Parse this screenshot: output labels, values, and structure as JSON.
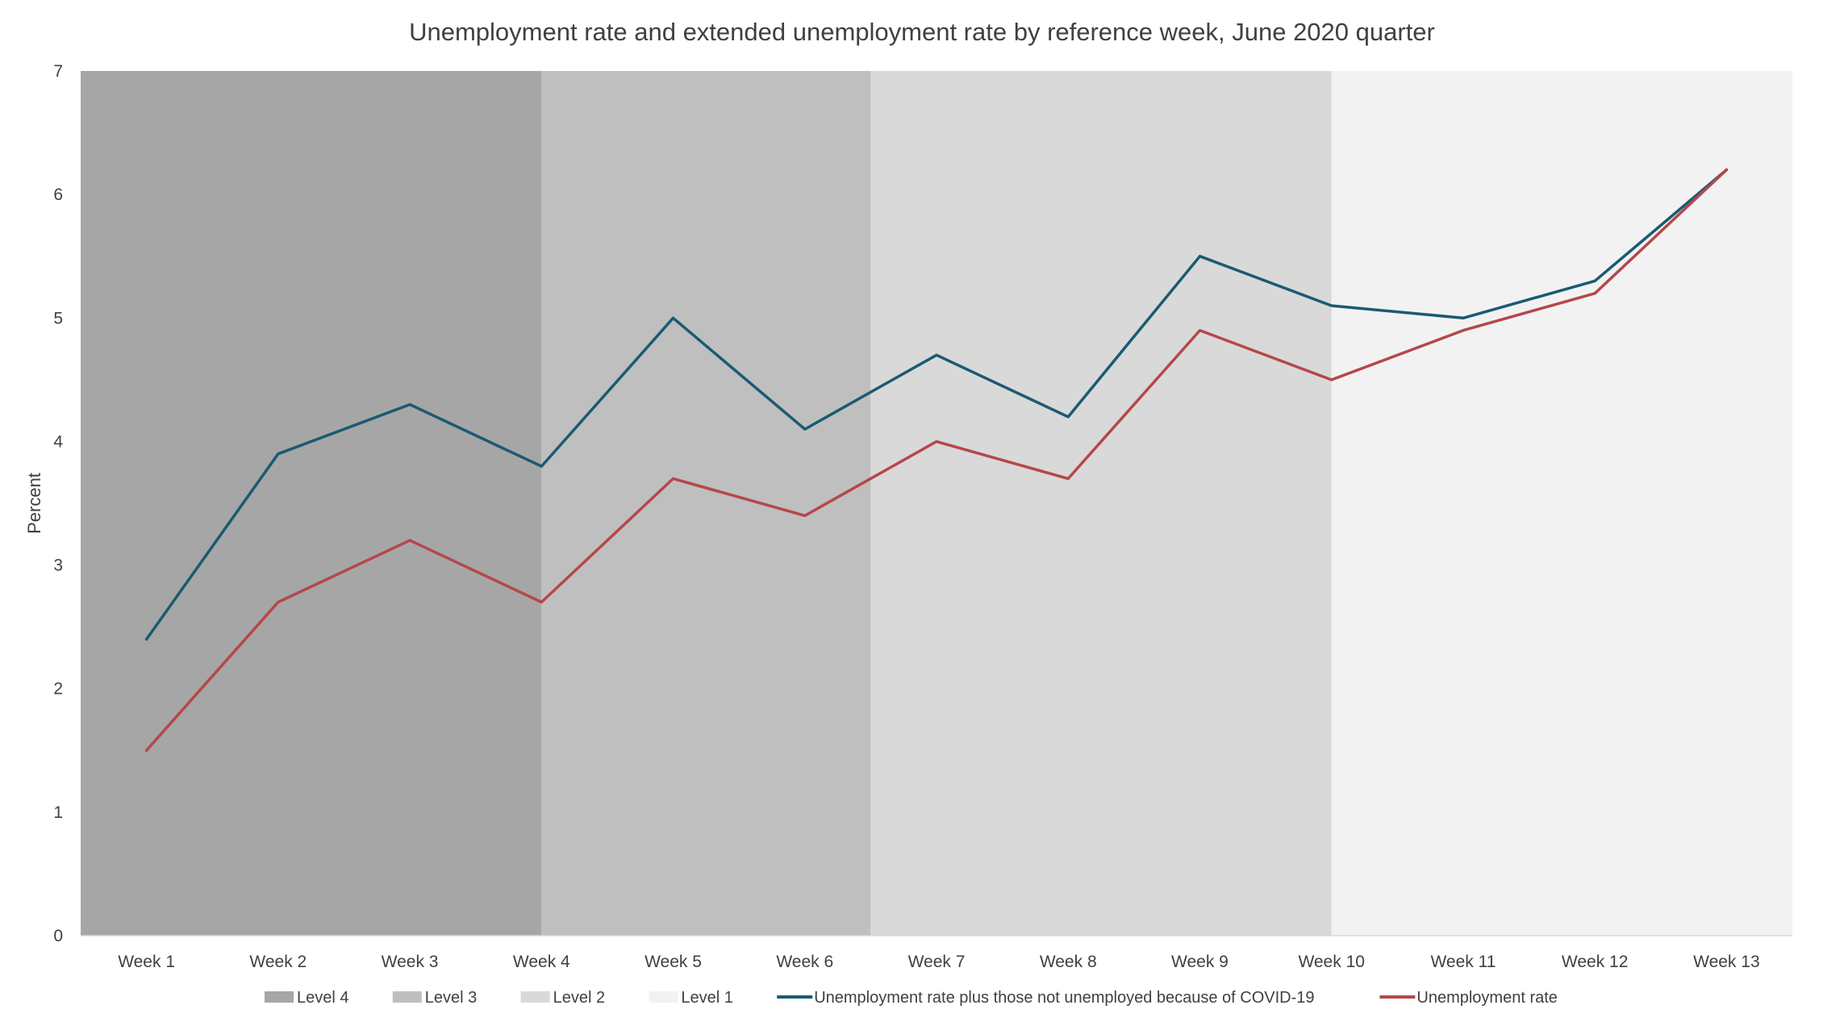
{
  "chart_data": {
    "type": "line",
    "title": "Unemployment rate and extended unemployment rate by reference week, June 2020 quarter",
    "xlabel": "",
    "ylabel": "Percent",
    "ylim": [
      0,
      7
    ],
    "yticks": [
      0,
      1,
      2,
      3,
      4,
      5,
      6,
      7
    ],
    "categories": [
      "Week 1",
      "Week 2",
      "Week 3",
      "Week 4",
      "Week 5",
      "Week 6",
      "Week 7",
      "Week 8",
      "Week 9",
      "Week 10",
      "Week 11",
      "Week 12",
      "Week 13"
    ],
    "series": [
      {
        "name": "Unemployment rate plus those not unemployed because of COVID-19",
        "color": "#1b5a73",
        "values": [
          2.4,
          3.9,
          4.3,
          3.8,
          5.0,
          4.1,
          4.7,
          4.2,
          5.5,
          5.1,
          5.0,
          5.3,
          6.2
        ]
      },
      {
        "name": "Unemployment rate",
        "color": "#b5474b",
        "values": [
          1.5,
          2.7,
          3.2,
          2.7,
          3.7,
          3.4,
          4.0,
          3.7,
          4.9,
          4.5,
          4.9,
          5.2,
          6.2
        ]
      }
    ],
    "background_bands": [
      {
        "name": "Level 4",
        "color": "#a6a6a6",
        "from_category": "Week 1",
        "to_category": "Week 4",
        "to_edge": "center"
      },
      {
        "name": "Level 3",
        "color": "#bfbfbf",
        "from_category": "Week 4",
        "to_category": "Week 6",
        "to_edge": "between-6-7"
      },
      {
        "name": "Level 2",
        "color": "#d9d9d9",
        "from_category": "Week 7",
        "to_category": "Week 10",
        "to_edge": "center"
      },
      {
        "name": "Level 1",
        "color": "#f2f2f2",
        "from_category": "Week 10",
        "to_category": "Week 13",
        "to_edge": "end"
      }
    ],
    "legend": {
      "placement": "bottom",
      "items": [
        {
          "label": "Level 4",
          "kind": "box",
          "color": "#a6a6a6"
        },
        {
          "label": "Level 3",
          "kind": "box",
          "color": "#bfbfbf"
        },
        {
          "label": "Level 2",
          "kind": "box",
          "color": "#d9d9d9"
        },
        {
          "label": "Level 1",
          "kind": "box",
          "color": "#f2f2f2"
        },
        {
          "label": "Unemployment rate plus those not unemployed because of COVID-19",
          "kind": "line",
          "color": "#1b5a73"
        },
        {
          "label": "Unemployment rate",
          "kind": "line",
          "color": "#b5474b"
        }
      ]
    },
    "grid": false
  }
}
